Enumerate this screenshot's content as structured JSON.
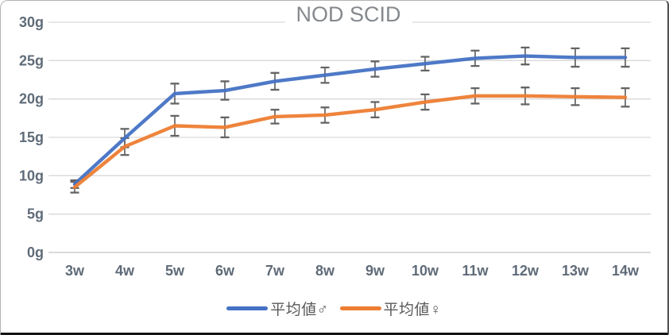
{
  "chart_data": {
    "type": "line",
    "title": "NOD SCID",
    "categories": [
      "3w",
      "4w",
      "5w",
      "6w",
      "7w",
      "8w",
      "9w",
      "10w",
      "11w",
      "12w",
      "13w",
      "14w"
    ],
    "series": [
      {
        "name": "平均値♂",
        "color": "#4472C4",
        "values": [
          8.9,
          14.9,
          20.7,
          21.1,
          22.3,
          23.1,
          23.9,
          24.6,
          25.3,
          25.6,
          25.4,
          25.4
        ],
        "error": [
          0.5,
          1.2,
          1.3,
          1.2,
          1.1,
          1.0,
          1.0,
          0.9,
          1.0,
          1.1,
          1.2,
          1.2
        ]
      },
      {
        "name": "平均値♀",
        "color": "#ED7D31",
        "values": [
          8.5,
          13.8,
          16.5,
          16.3,
          17.7,
          17.9,
          18.6,
          19.6,
          20.4,
          20.4,
          20.3,
          20.2
        ],
        "error": [
          0.7,
          1.1,
          1.3,
          1.3,
          0.9,
          1.0,
          1.0,
          1.0,
          1.0,
          1.1,
          1.1,
          1.2
        ]
      }
    ],
    "xlabel": "",
    "ylabel": "",
    "ylim": [
      0,
      30
    ],
    "yticks": [
      0,
      5,
      10,
      15,
      20,
      25,
      30
    ],
    "ytick_suffix": "g",
    "grid": true,
    "legend_position": "bottom",
    "colors": {
      "gridline": "#d9d9d9",
      "baseline": "#c3c3c3",
      "axis_label": "#5f6b78",
      "error_bar": "#646464",
      "title": "#85898d"
    }
  }
}
